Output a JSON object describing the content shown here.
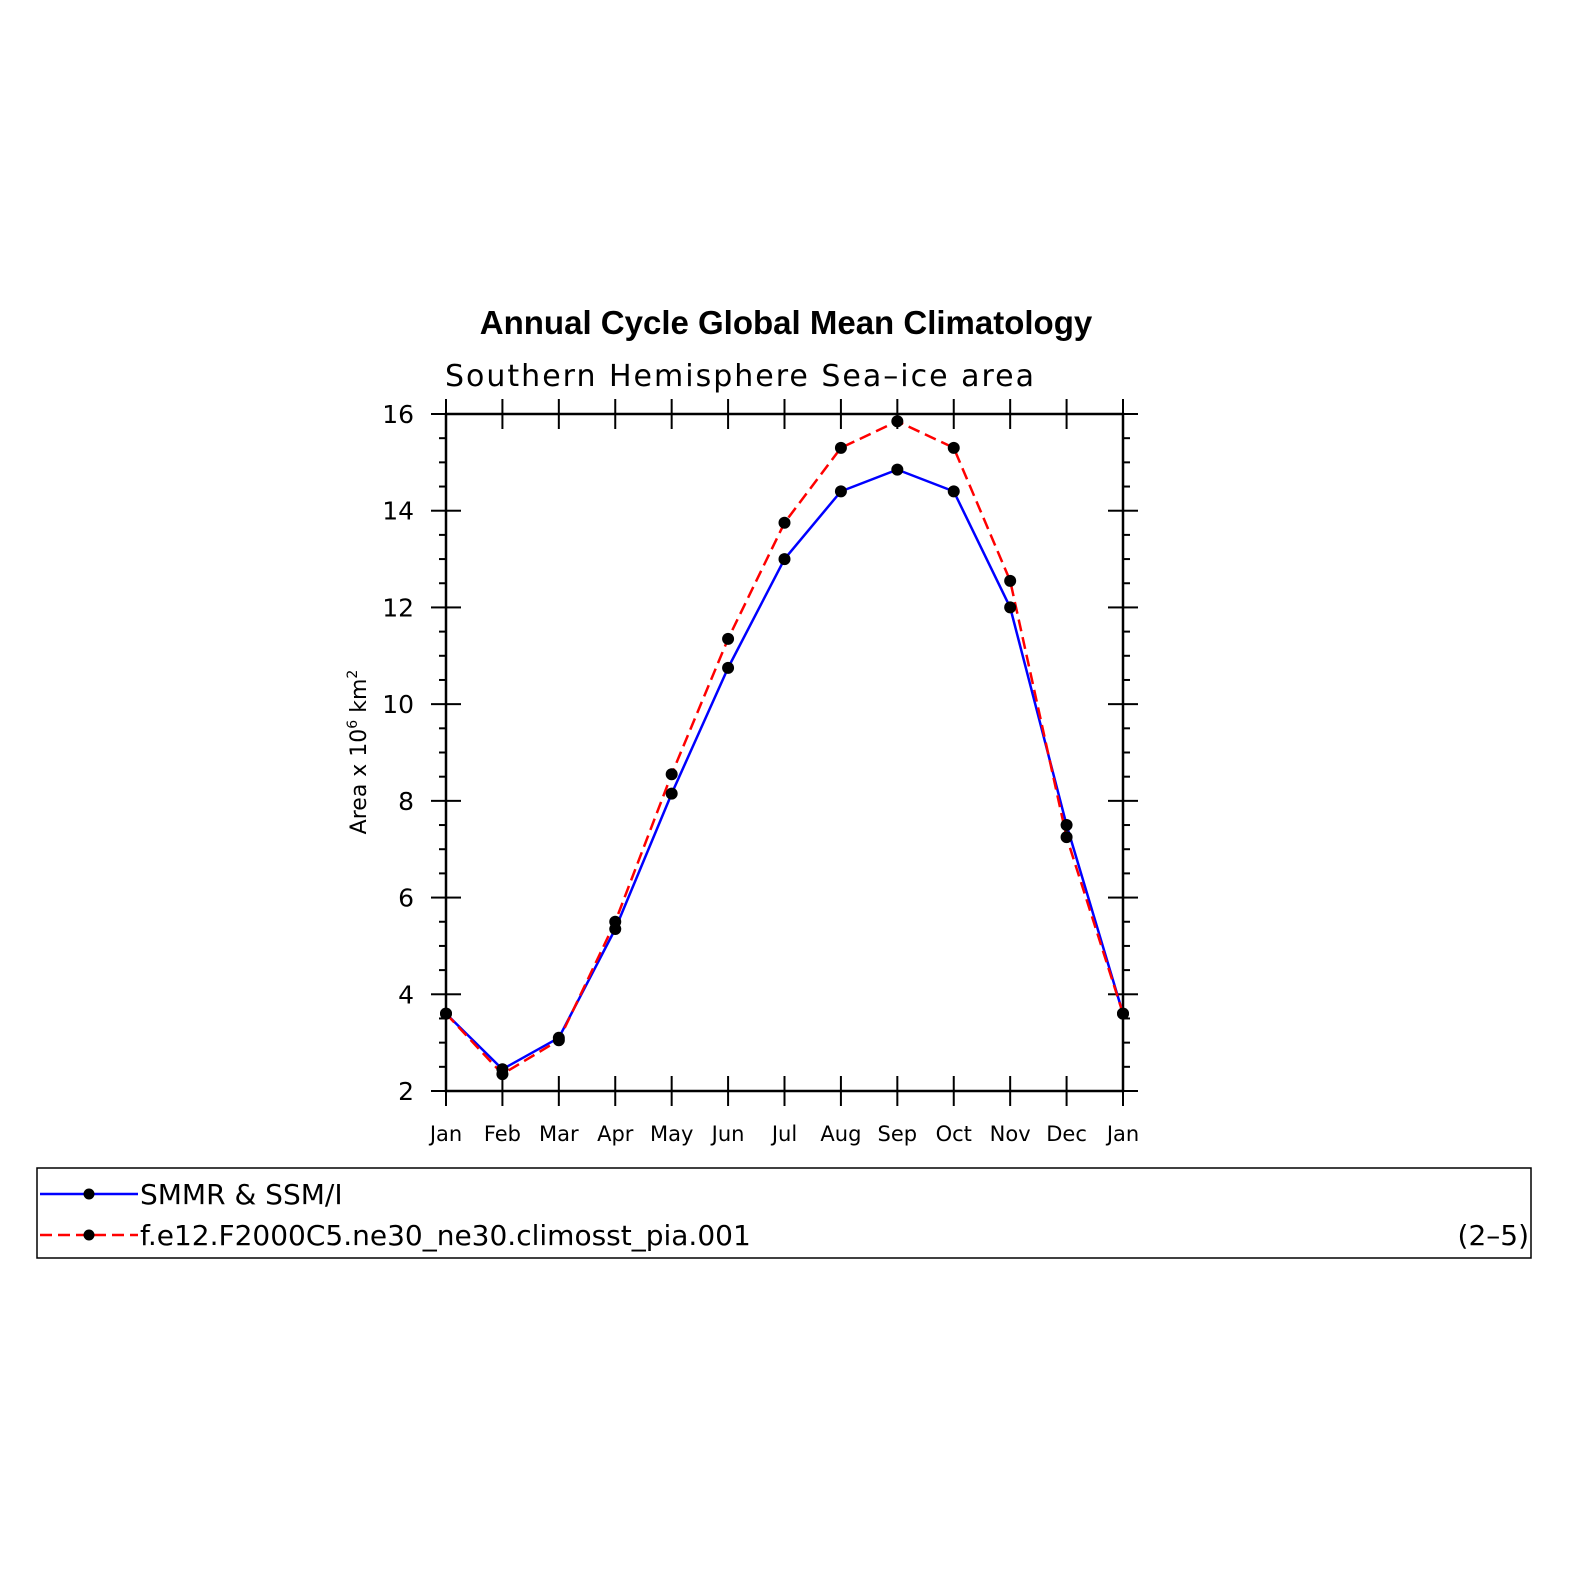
{
  "chart_data": {
    "type": "line",
    "title": "Annual Cycle Global Mean Climatology",
    "subtitle": "Southern Hemisphere Sea–ice area",
    "ylabel": {
      "prefix": "Area x 10",
      "exp1": "6",
      "mid": " km",
      "exp2": "2"
    },
    "ylim": [
      2,
      16
    ],
    "yticks": [
      2,
      4,
      6,
      8,
      10,
      12,
      14,
      16
    ],
    "categories": [
      "Jan",
      "Feb",
      "Mar",
      "Apr",
      "May",
      "Jun",
      "Jul",
      "Aug",
      "Sep",
      "Oct",
      "Nov",
      "Dec",
      "Jan"
    ],
    "series": [
      {
        "name": "SMMR & SSM/I",
        "color": "#0000ff",
        "dash": "solid",
        "values": [
          3.6,
          2.45,
          3.1,
          5.35,
          8.15,
          10.75,
          13.0,
          14.4,
          14.85,
          14.4,
          12.0,
          7.5,
          3.6
        ]
      },
      {
        "name": "f.e12.F2000C5.ne30_ne30.climosst_pia.001",
        "color": "#ff0000",
        "dash": "dashed",
        "values": [
          3.6,
          2.35,
          3.05,
          5.5,
          8.55,
          11.35,
          13.75,
          15.3,
          15.85,
          15.3,
          12.55,
          7.25,
          3.6
        ]
      }
    ],
    "marker_color": "#000000",
    "legend_position": "bottom",
    "panel_label": "(2–5)"
  }
}
